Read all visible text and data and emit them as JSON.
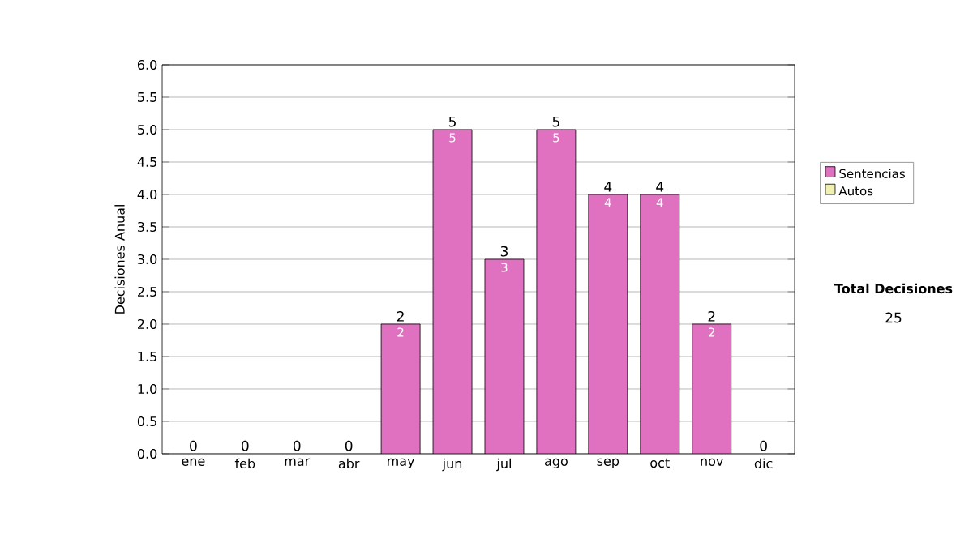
{
  "chart_data": {
    "type": "bar",
    "stacked": true,
    "ylabel": "Decisiones Anual",
    "categories": [
      "ene",
      "feb",
      "mar",
      "abr",
      "may",
      "jun",
      "jul",
      "ago",
      "sep",
      "oct",
      "nov",
      "dic"
    ],
    "series": [
      {
        "name": "Sentencias",
        "color": "#e070c0",
        "values": [
          0,
          0,
          0,
          0,
          2,
          5,
          3,
          5,
          4,
          4,
          2,
          0
        ],
        "value_labels": [
          null,
          null,
          null,
          null,
          "2",
          "5",
          "3",
          "5",
          "4",
          "4",
          "2",
          null
        ]
      },
      {
        "name": "Autos",
        "color": "#f0f0b0",
        "values": [
          0,
          0,
          0,
          0,
          0,
          0,
          0,
          0,
          0,
          0,
          0,
          0
        ]
      }
    ],
    "totals": [
      "0",
      "0",
      "0",
      "0",
      "2",
      "5",
      "3",
      "5",
      "4",
      "4",
      "2",
      "0"
    ],
    "ylim": [
      0,
      6
    ],
    "yticks": [
      {
        "value": 0,
        "label": "0.0"
      },
      {
        "value": 0.5,
        "label": "0.5"
      },
      {
        "value": 1,
        "label": "1.0"
      },
      {
        "value": 1.5,
        "label": "1.5"
      },
      {
        "value": 2,
        "label": "2.0"
      },
      {
        "value": 2.5,
        "label": "2.5"
      },
      {
        "value": 3,
        "label": "3.0"
      },
      {
        "value": 3.5,
        "label": "3.5"
      },
      {
        "value": 4,
        "label": "4.0"
      },
      {
        "value": 4.5,
        "label": "4.5"
      },
      {
        "value": 5,
        "label": "5.0"
      },
      {
        "value": 5.5,
        "label": "5.5"
      },
      {
        "value": 6,
        "label": "6.0"
      }
    ],
    "grid": "y",
    "legend": "right",
    "annotations": [
      "Total Decisiones",
      "25"
    ]
  }
}
